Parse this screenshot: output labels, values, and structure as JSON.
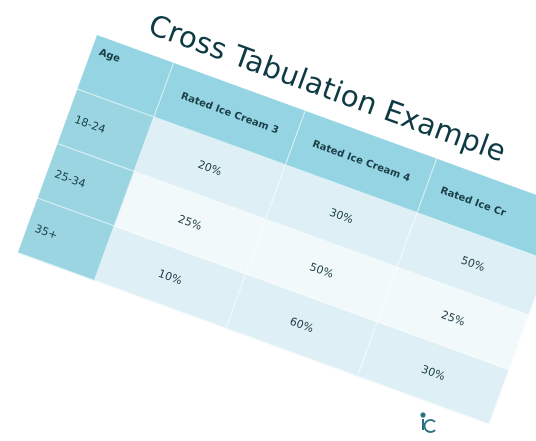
{
  "slide": {
    "title": "Cross Tabulation Example"
  },
  "table": {
    "header": {
      "age": "Age",
      "col1": "Rated Ice Cream 3",
      "col2": "Rated Ice Cream 4",
      "col3": "Rated Ice Cr"
    },
    "rows": [
      {
        "age": "18-24",
        "v1": "20%",
        "v2": "30%",
        "v3": "50%"
      },
      {
        "age": "25-34",
        "v1": "25%",
        "v2": "50%",
        "v3": "25%"
      },
      {
        "age": "35+",
        "v1": "10%",
        "v2": "60%",
        "v3": "30%"
      }
    ]
  },
  "colors": {
    "header_bg": "#95d4e2",
    "row_dark": "#def0f5",
    "row_light": "#f1f9fb",
    "title": "#0e3a44"
  },
  "logo": {
    "icon": "ic-logo-icon"
  }
}
